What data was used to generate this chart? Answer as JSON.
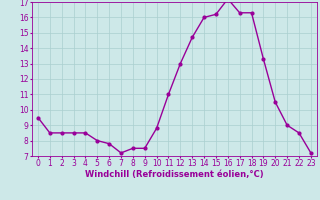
{
  "hours": [
    0,
    1,
    2,
    3,
    4,
    5,
    6,
    7,
    8,
    9,
    10,
    11,
    12,
    13,
    14,
    15,
    16,
    17,
    18,
    19,
    20,
    21,
    22,
    23
  ],
  "values": [
    9.5,
    8.5,
    8.5,
    8.5,
    8.5,
    8.0,
    7.8,
    7.2,
    7.5,
    7.5,
    8.8,
    11.0,
    13.0,
    14.7,
    16.0,
    16.2,
    17.2,
    16.3,
    16.3,
    13.3,
    10.5,
    9.0,
    8.5,
    7.2
  ],
  "line_color": "#990099",
  "marker": ".",
  "marker_size": 4,
  "bg_color": "#cde8e8",
  "grid_color": "#aacfcf",
  "title": "Windchill (Refroidissement éolien,°C)",
  "ylim": [
    7,
    17
  ],
  "yticks": [
    7,
    8,
    9,
    10,
    11,
    12,
    13,
    14,
    15,
    16,
    17
  ],
  "xlim": [
    -0.5,
    23.5
  ],
  "tick_fontsize": 5.5,
  "xlabel_fontsize": 6.0,
  "linewidth": 1.0
}
